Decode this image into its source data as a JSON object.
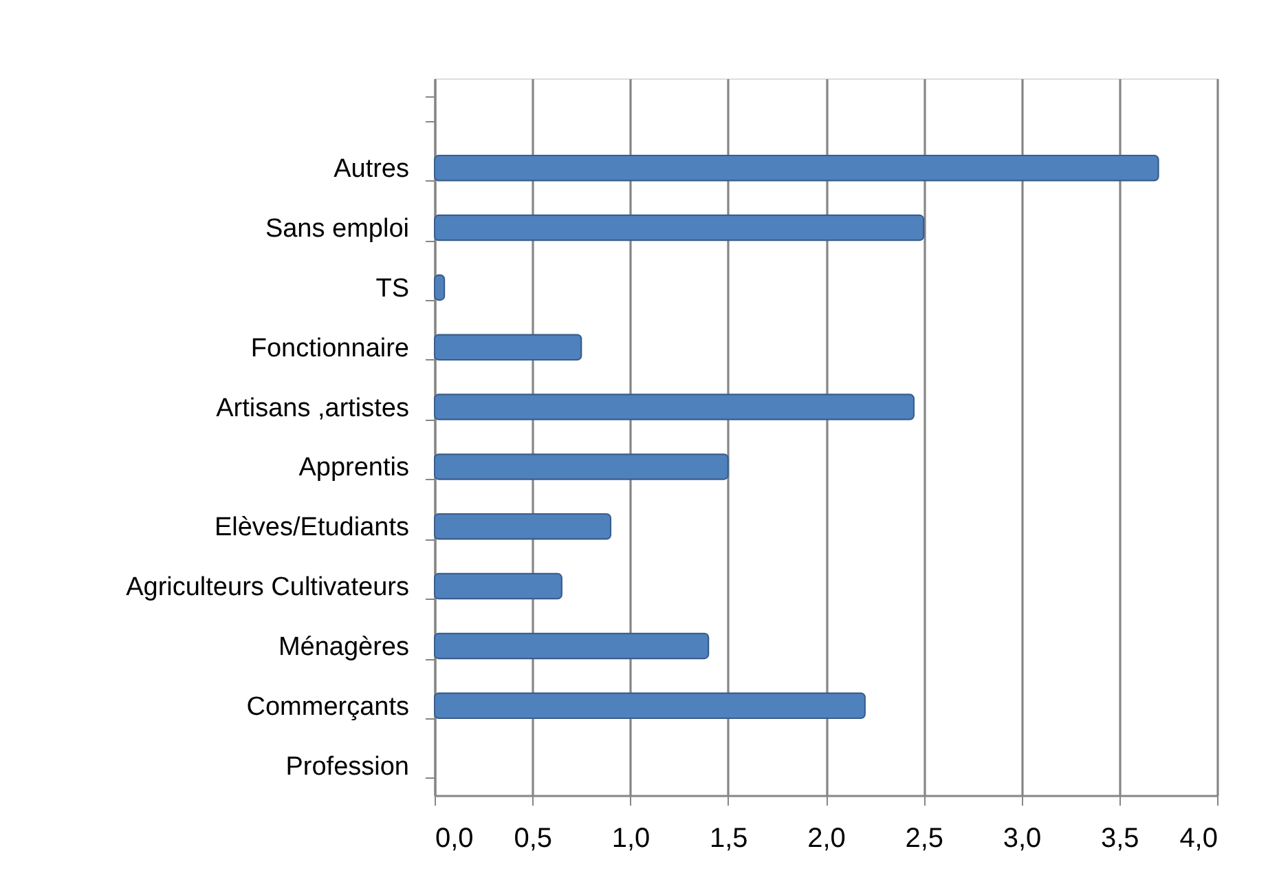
{
  "chart_data": {
    "type": "bar",
    "orientation": "horizontal",
    "categories": [
      null,
      "Autres",
      "Sans emploi",
      "TS",
      "Fonctionnaire",
      "Artisans ,artistes",
      "Apprentis",
      "Elèves/Etudiants",
      "Agriculteurs Cultivateurs",
      "Ménagères",
      "Commerçants",
      "Profession"
    ],
    "values": [
      null,
      3.7,
      2.5,
      0.05,
      0.75,
      2.45,
      1.5,
      0.9,
      0.65,
      1.4,
      2.2,
      null
    ],
    "color": "#4f81bd",
    "xlim": [
      0,
      4
    ],
    "xticks": [
      {
        "value": 0,
        "label": "0,0"
      },
      {
        "value": 0.5,
        "label": "0,5"
      },
      {
        "value": 1,
        "label": "1,0"
      },
      {
        "value": 1.5,
        "label": "1,5"
      },
      {
        "value": 2,
        "label": "2,0"
      },
      {
        "value": 2.5,
        "label": "2,5"
      },
      {
        "value": 3,
        "label": "3,0"
      },
      {
        "value": 3.5,
        "label": "3,5"
      },
      {
        "value": 4,
        "label": "4,0"
      }
    ],
    "grid": "x"
  }
}
